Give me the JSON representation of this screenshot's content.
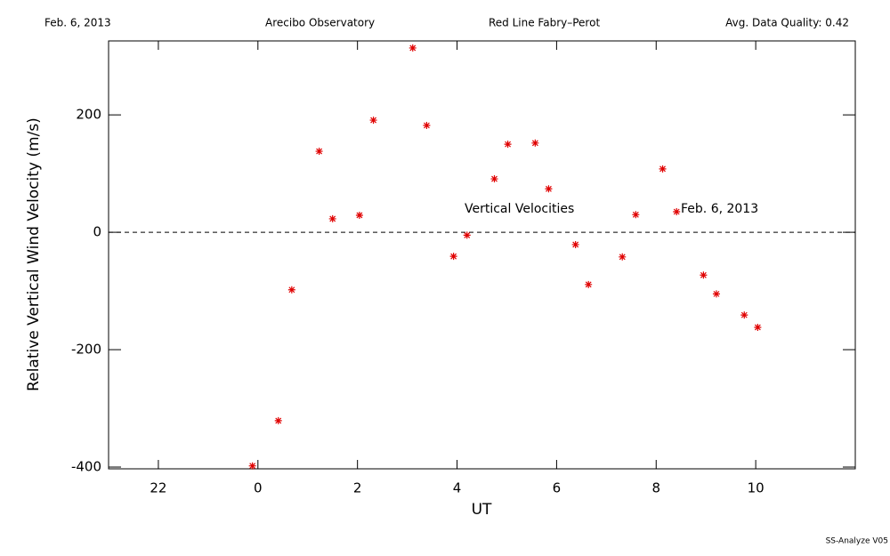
{
  "chart_data": {
    "type": "scatter",
    "header": [
      "Feb. 6, 2013",
      "Arecibo Observatory",
      "Red Line Fabry–Perot",
      "Avg. Data Quality: 0.42"
    ],
    "xlabel": "UT",
    "ylabel": "Relative Vertical Wind Velocity (m/s)",
    "annotations": [
      "Vertical Velocities",
      "Feb. 6, 2013"
    ],
    "footer": "SS-Analyze V05",
    "color": "#e00000",
    "x": [
      -0.11,
      0.41,
      0.68,
      1.23,
      1.5,
      2.04,
      2.32,
      3.11,
      3.39,
      3.93,
      4.2,
      4.75,
      5.02,
      5.57,
      5.84,
      6.38,
      6.64,
      7.32,
      7.59,
      8.13,
      8.41,
      8.95,
      9.21,
      9.77,
      10.04
    ],
    "values": [
      -398,
      -321,
      -98,
      138,
      23,
      29,
      191,
      314,
      182,
      -41,
      -5,
      91,
      150,
      152,
      74,
      -21,
      -89,
      -42,
      30,
      108,
      35,
      -73,
      -105,
      -141,
      -162
    ],
    "xlim": [
      -3,
      12
    ],
    "xticks": [
      {
        "value": -2,
        "label": "22"
      },
      0,
      2,
      4,
      6,
      8,
      10
    ],
    "ylim": [
      -403,
      326
    ],
    "yticks": [
      -400,
      -200,
      0,
      200
    ],
    "hline": 0
  }
}
